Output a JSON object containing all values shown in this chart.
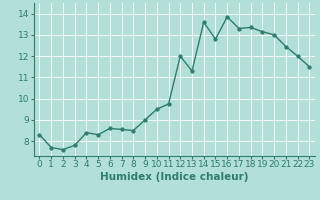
{
  "x": [
    0,
    1,
    2,
    3,
    4,
    5,
    6,
    7,
    8,
    9,
    10,
    11,
    12,
    13,
    14,
    15,
    16,
    17,
    18,
    19,
    20,
    21,
    22,
    23
  ],
  "y": [
    8.3,
    7.7,
    7.6,
    7.8,
    8.4,
    8.3,
    8.6,
    8.55,
    8.5,
    9.0,
    9.5,
    9.75,
    12.0,
    11.3,
    13.6,
    12.8,
    13.85,
    13.3,
    13.35,
    13.15,
    13.0,
    12.45,
    12.0,
    11.5
  ],
  "line_color": "#2e7d6e",
  "marker_color": "#2e7d6e",
  "bg_color": "#b2e0d8",
  "grid_color": "#ffffff",
  "xlabel": "Humidex (Indice chaleur)",
  "xlim": [
    -0.5,
    23.5
  ],
  "ylim": [
    7.3,
    14.5
  ],
  "yticks": [
    8,
    9,
    10,
    11,
    12,
    13,
    14
  ],
  "xticks": [
    0,
    1,
    2,
    3,
    4,
    5,
    6,
    7,
    8,
    9,
    10,
    11,
    12,
    13,
    14,
    15,
    16,
    17,
    18,
    19,
    20,
    21,
    22,
    23
  ],
  "xlabel_fontsize": 7.5,
  "tick_fontsize": 6.5,
  "line_width": 1.0,
  "marker_size": 2.5
}
